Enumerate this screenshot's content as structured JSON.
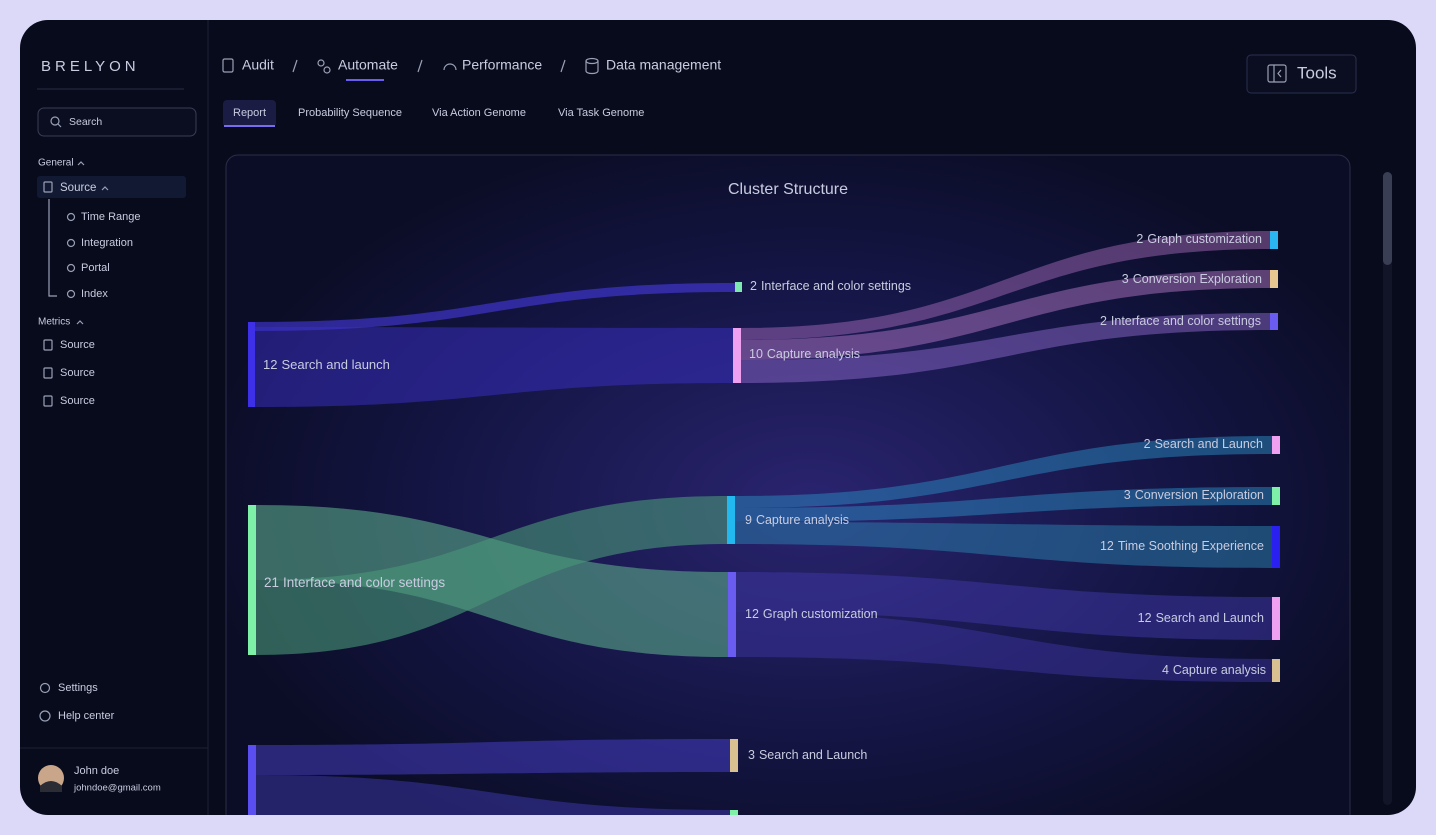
{
  "sidebar": {
    "brand": "BRELYON",
    "search": "Search",
    "general": "General",
    "source": "Source",
    "sub_items": [
      "Time Range",
      "Integration",
      "Portal",
      "Index"
    ],
    "metrics": "Metrics",
    "metric_items": [
      "Source",
      "Source",
      "Source"
    ],
    "settings": "Settings",
    "help": "Help center",
    "user": {
      "name": "John doe",
      "email": "johndoe@gmail.com"
    }
  },
  "nav": {
    "breadcrumbs": [
      "Audit",
      "Automate",
      "Performance",
      "Data management"
    ],
    "tools": "Tools",
    "tabs": [
      "Report",
      "Probability Sequence",
      "Via Action Genome",
      "Via Task Genome"
    ]
  },
  "cluster": {
    "title": "Cluster Structure",
    "nodes": [
      {
        "value": 12,
        "name": "Search and launch",
        "color": "#3d30e8"
      },
      {
        "value": 2,
        "name": "Interface and color settings",
        "color": "#7ee8b0"
      },
      {
        "value": 10,
        "name": "Capture analysis",
        "color": "#f0a0f0"
      },
      {
        "value": 2,
        "name": "Graph customization",
        "color": "#2ab5f0"
      },
      {
        "value": 3,
        "name": "Conversion Exploration",
        "color": "#e8c890"
      },
      {
        "value": 2,
        "name": "Interface and color settings",
        "color": "#6a5cf0"
      },
      {
        "value": 21,
        "name": "Interface and color settings",
        "color": "#7ef0a8"
      },
      {
        "value": 9,
        "name": "Capture analysis",
        "color": "#22b8f0"
      },
      {
        "value": 12,
        "name": "Graph customization",
        "color": "#6a5cf0"
      },
      {
        "value": 2,
        "name": "Search and Launch",
        "color": "#f0a0f0"
      },
      {
        "value": 3,
        "name": "Conversion Exploration",
        "color": "#7ef0a8"
      },
      {
        "value": 12,
        "name": "Time Soothing Experience",
        "color": "#2a20f0"
      },
      {
        "value": 12,
        "name": "Search and Launch",
        "color": "#f0a0f0"
      },
      {
        "value": 4,
        "name": "Capture analysis",
        "color": "#d8c090"
      },
      {
        "value": 3,
        "name": "Search and Launch",
        "color": "#d8c090"
      }
    ]
  }
}
